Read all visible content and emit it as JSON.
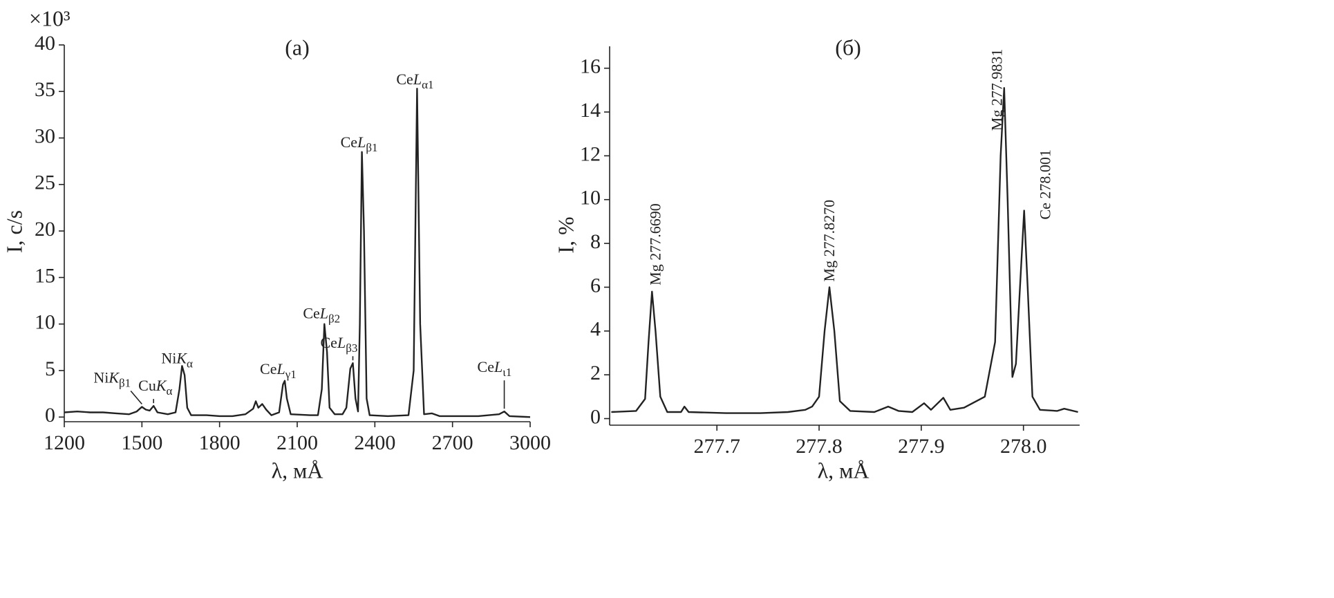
{
  "chart_data": [
    {
      "type": "line",
      "panel_label": "(a)",
      "multiplier": "×10³",
      "x_label": "λ, мÅ",
      "y_label": "I, c/s",
      "color": "#222222",
      "xlim": [
        1200,
        3000
      ],
      "xticks": [
        1200,
        1500,
        1800,
        2100,
        2400,
        2700,
        3000
      ],
      "ylim": [
        -0.5,
        40
      ],
      "yticks": [
        0,
        5,
        10,
        15,
        20,
        25,
        30,
        35,
        40
      ],
      "x": [
        1200,
        1250,
        1300,
        1350,
        1400,
        1450,
        1480,
        1500,
        1515,
        1530,
        1545,
        1560,
        1600,
        1630,
        1645,
        1655,
        1665,
        1675,
        1690,
        1750,
        1800,
        1850,
        1900,
        1930,
        1940,
        1950,
        1965,
        1980,
        2000,
        2030,
        2045,
        2052,
        2060,
        2075,
        2150,
        2180,
        2195,
        2205,
        2215,
        2225,
        2245,
        2275,
        2290,
        2305,
        2315,
        2325,
        2335,
        2342,
        2350,
        2358,
        2368,
        2380,
        2450,
        2530,
        2550,
        2563,
        2575,
        2590,
        2620,
        2650,
        2800,
        2880,
        2900,
        2920,
        3000
      ],
      "values": [
        0.5,
        0.6,
        0.5,
        0.5,
        0.4,
        0.3,
        0.6,
        1.1,
        0.8,
        0.7,
        1.2,
        0.5,
        0.3,
        0.5,
        3.0,
        5.5,
        4.5,
        1.0,
        0.2,
        0.2,
        0.1,
        0.1,
        0.3,
        0.9,
        1.7,
        1.0,
        1.4,
        0.8,
        0.2,
        0.5,
        3.5,
        3.9,
        2.0,
        0.3,
        0.2,
        0.2,
        3.0,
        10.0,
        7.0,
        1.0,
        0.3,
        0.3,
        1.0,
        5.2,
        5.8,
        2.0,
        0.6,
        10,
        28.5,
        20,
        2,
        0.2,
        0.1,
        0.2,
        5,
        35.3,
        10,
        0.3,
        0.4,
        0.1,
        0.1,
        0.3,
        0.6,
        0.1,
        0.0
      ],
      "annotations": [
        {
          "text": [
            "Ni",
            "K",
            "β1"
          ],
          "x": 1500,
          "y": 1.1
        },
        {
          "text": [
            "Cu",
            "K",
            "α"
          ],
          "x": 1545,
          "y": 1.2
        },
        {
          "text": [
            "Ni",
            "K",
            "α"
          ],
          "x": 1655,
          "y": 5.5
        },
        {
          "text": [
            "Ce",
            "L",
            "γ1"
          ],
          "x": 2052,
          "y": 3.9
        },
        {
          "text": [
            "Ce",
            "L",
            "β2"
          ],
          "x": 2205,
          "y": 10.0
        },
        {
          "text": [
            "Ce",
            "L",
            "β3"
          ],
          "x": 2315,
          "y": 5.8
        },
        {
          "text": [
            "Ce",
            "L",
            "β1"
          ],
          "x": 2350,
          "y": 28.5
        },
        {
          "text": [
            "Ce",
            "L",
            "α1"
          ],
          "x": 2563,
          "y": 35.3
        },
        {
          "text": [
            "Ce",
            "L",
            "ι1"
          ],
          "x": 2900,
          "y": 0.6
        }
      ]
    },
    {
      "type": "line",
      "panel_label": "(б)",
      "x_label": "λ, мÅ",
      "y_label": "I, %",
      "color": "#222222",
      "xlim": [
        277.595,
        278.055
      ],
      "xticks": [
        277.7,
        277.8,
        277.9,
        {
          "value": 278.0,
          "label": "278.0"
        }
      ],
      "ylim": [
        -0.3,
        17
      ],
      "yticks": [
        0,
        2,
        4,
        6,
        8,
        10,
        12,
        14,
        16
      ],
      "x": [
        277.5966,
        277.6209,
        277.6297,
        277.6331,
        277.6365,
        277.6399,
        277.6446,
        277.6514,
        277.6649,
        277.6682,
        277.6723,
        277.7088,
        277.7426,
        277.7696,
        277.7865,
        277.7932,
        277.8,
        277.8054,
        277.8101,
        277.8149,
        277.8203,
        277.8304,
        277.8541,
        277.8676,
        277.8777,
        277.8912,
        277.9027,
        277.9095,
        277.9216,
        277.9284,
        277.9419,
        277.9622,
        277.9723,
        277.9777,
        277.9811,
        277.9845,
        277.9892,
        277.9926,
        277.9966,
        278.0007,
        278.0041,
        278.0088,
        278.0162,
        278.0331,
        278.0399,
        278.0534
      ],
      "values": [
        0.3,
        0.35,
        0.9,
        3.5,
        5.8,
        4.0,
        1.0,
        0.3,
        0.3,
        0.55,
        0.3,
        0.25,
        0.25,
        0.3,
        0.4,
        0.55,
        1.0,
        4.0,
        6.0,
        4.0,
        0.8,
        0.35,
        0.3,
        0.55,
        0.35,
        0.3,
        0.7,
        0.4,
        0.95,
        0.4,
        0.5,
        1.0,
        3.5,
        12,
        15.1,
        10,
        1.9,
        2.5,
        6,
        9.5,
        6,
        1.0,
        0.4,
        0.35,
        0.45,
        0.3
      ],
      "annotations": [
        {
          "text": "Mg 277.6690",
          "x": 277.6365,
          "y": 5.8
        },
        {
          "text": "Mg 277.8270",
          "x": 277.8101,
          "y": 6.0
        },
        {
          "text": "Mg 277.9831",
          "x": 277.9811,
          "y": 15.1
        },
        {
          "text": "Ce 278.001",
          "x": 278.0007,
          "y": 9.5
        }
      ]
    }
  ]
}
